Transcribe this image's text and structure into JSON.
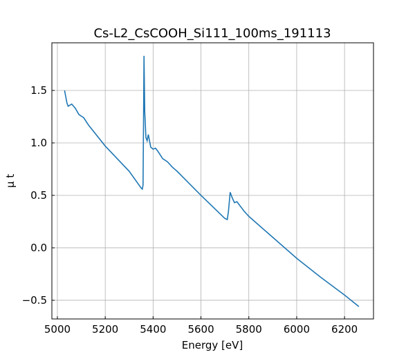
{
  "chart_data": {
    "type": "line",
    "title": "Cs-L2_CsCOOH_Si111_100ms_191113",
    "x_label": "Energy [eV]",
    "y_label": "μ t",
    "x": [
      5030,
      5040,
      5045,
      5060,
      5075,
      5090,
      5110,
      5130,
      5200,
      5300,
      5350,
      5355,
      5358,
      5360,
      5362,
      5365,
      5370,
      5375,
      5380,
      5385,
      5390,
      5400,
      5410,
      5420,
      5440,
      5460,
      5480,
      5500,
      5600,
      5700,
      5710,
      5715,
      5722,
      5730,
      5740,
      5750,
      5760,
      5780,
      5800,
      5900,
      6000,
      6100,
      6200,
      6260
    ],
    "series": [
      {
        "name": "Cs-L2",
        "color": "#1f77b4",
        "values": [
          1.5,
          1.38,
          1.35,
          1.37,
          1.33,
          1.27,
          1.24,
          1.17,
          0.97,
          0.73,
          0.57,
          0.56,
          0.6,
          1.2,
          1.83,
          1.3,
          1.05,
          1.02,
          1.08,
          1.02,
          0.96,
          0.94,
          0.95,
          0.92,
          0.85,
          0.82,
          0.77,
          0.73,
          0.5,
          0.28,
          0.27,
          0.35,
          0.53,
          0.48,
          0.43,
          0.44,
          0.41,
          0.35,
          0.3,
          0.1,
          -0.1,
          -0.28,
          -0.45,
          -0.56
        ]
      }
    ],
    "xlim": [
      4977,
      6321
    ],
    "ylim": [
      -0.678,
      1.954
    ],
    "xticks": [
      5000,
      5200,
      5400,
      5600,
      5800,
      6000,
      6200
    ],
    "yticks": [
      {
        "value": -0.5,
        "label": "−0.5"
      },
      {
        "value": 0,
        "label": "0.0"
      },
      {
        "value": 0.5,
        "label": "0.5"
      },
      {
        "value": 1,
        "label": "1.0"
      },
      {
        "value": 1.5,
        "label": "1.5"
      }
    ],
    "grid": true
  }
}
